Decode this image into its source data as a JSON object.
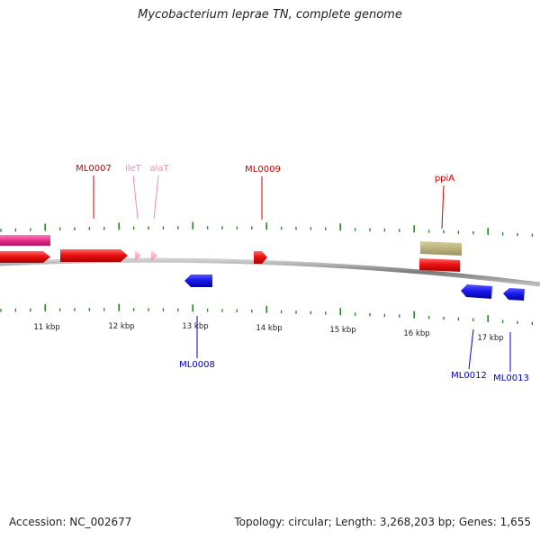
{
  "title": "Mycobacterium leprae TN, complete genome",
  "footer": {
    "accession": "Accession: NC_002677",
    "summary": "Topology: circular; Length: 3,268,203 bp; Genes: 1,655"
  },
  "colors": {
    "forward_cds": "#ee1111",
    "reverse_cds": "#1a1aee",
    "trna": "#f7a8c8",
    "rrna_pink": "#e8308a",
    "other_feature": "#bdb47a",
    "tick": "#2a8a2a",
    "backbone": "#8a8a8a"
  },
  "kbp_labels": [
    "11 kbp",
    "12 kbp",
    "13 kbp",
    "14 kbp",
    "15 kbp",
    "16 kbp",
    "17 kbp"
  ],
  "forward_labels": [
    "ML0007",
    "ileT",
    "alaT",
    "ML0009",
    "ppiA"
  ],
  "reverse_labels": [
    "ML0008",
    "ML0012",
    "ML0013"
  ]
}
